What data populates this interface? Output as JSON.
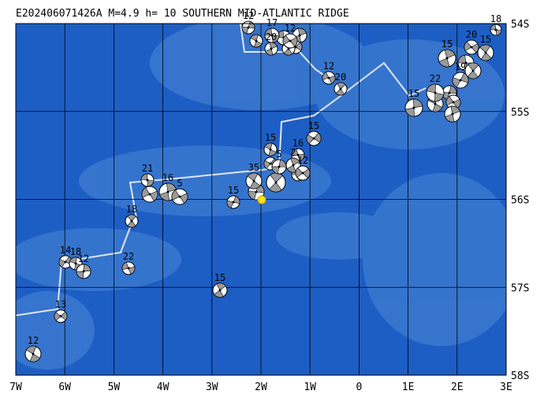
{
  "header": {
    "title": "E202406071426A  M=4.9  h= 10  SOUTHERN MID-ATLANTIC RIDGE"
  },
  "lon_labels": [
    "7W",
    "6W",
    "5W",
    "4W",
    "3W",
    "2W",
    "1W",
    "0",
    "1E",
    "2E",
    "3E"
  ],
  "lat_labels": [
    "54S",
    "55S",
    "56S",
    "57S",
    "58S"
  ],
  "depth_labels": [
    "18",
    "15",
    "20",
    "15",
    "19",
    "22",
    "15",
    "12",
    "20",
    "15",
    "15",
    "5",
    "16",
    "2",
    "12",
    "35",
    "15",
    "21",
    "16",
    "5",
    "18",
    "14",
    "18",
    "12",
    "22",
    "15",
    "13",
    "12",
    "12",
    "17",
    "20",
    "12"
  ]
}
